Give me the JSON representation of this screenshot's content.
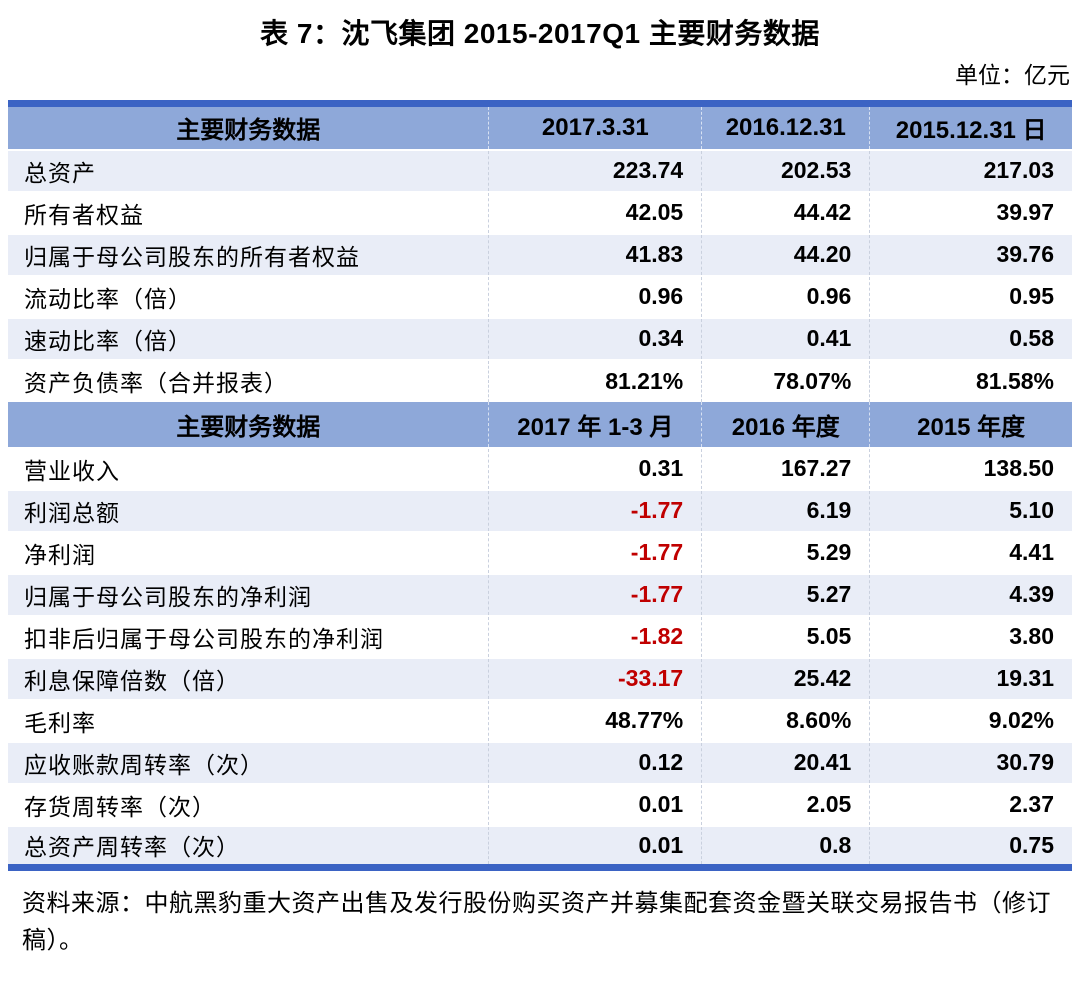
{
  "title": "表 7：沈飞集团 2015-2017Q1 主要财务数据",
  "unit_label": "单位：亿元",
  "colors": {
    "accent_bar": "#3b63c4",
    "header_background": "#8ea8d9",
    "shaded_row_background": "#e9edf7",
    "negative_value": "#c00000",
    "text": "#000000"
  },
  "table": {
    "sections": [
      {
        "header": {
          "label": "主要财务数据",
          "cols": [
            "2017.3.31",
            "2016.12.31",
            "2015.12.31 日"
          ]
        },
        "rows": [
          {
            "label": "总资产",
            "values": [
              "223.74",
              "202.53",
              "217.03"
            ]
          },
          {
            "label": "所有者权益",
            "values": [
              "42.05",
              "44.42",
              "39.97"
            ]
          },
          {
            "label": "归属于母公司股东的所有者权益",
            "values": [
              "41.83",
              "44.20",
              "39.76"
            ]
          },
          {
            "label": "流动比率（倍）",
            "values": [
              "0.96",
              "0.96",
              "0.95"
            ]
          },
          {
            "label": "速动比率（倍）",
            "values": [
              "0.34",
              "0.41",
              "0.58"
            ]
          },
          {
            "label": "资产负债率（合并报表）",
            "values": [
              "81.21%",
              "78.07%",
              "81.58%"
            ]
          }
        ]
      },
      {
        "header": {
          "label": "主要财务数据",
          "cols": [
            "2017 年 1-3 月",
            "2016 年度",
            "2015 年度"
          ]
        },
        "rows": [
          {
            "label": "营业收入",
            "values": [
              "0.31",
              "167.27",
              "138.50"
            ]
          },
          {
            "label": "利润总额",
            "values": [
              "-1.77",
              "6.19",
              "5.10"
            ]
          },
          {
            "label": "净利润",
            "values": [
              "-1.77",
              "5.29",
              "4.41"
            ]
          },
          {
            "label": "归属于母公司股东的净利润",
            "values": [
              "-1.77",
              "5.27",
              "4.39"
            ]
          },
          {
            "label": "扣非后归属于母公司股东的净利润",
            "values": [
              "-1.82",
              "5.05",
              "3.80"
            ]
          },
          {
            "label": "利息保障倍数（倍）",
            "values": [
              "-33.17",
              "25.42",
              "19.31"
            ]
          },
          {
            "label": "毛利率",
            "values": [
              "48.77%",
              "8.60%",
              "9.02%"
            ]
          },
          {
            "label": "应收账款周转率（次）",
            "values": [
              "0.12",
              "20.41",
              "30.79"
            ]
          },
          {
            "label": "存货周转率（次）",
            "values": [
              "0.01",
              "2.05",
              "2.37"
            ]
          },
          {
            "label": "总资产周转率（次）",
            "values": [
              "0.01",
              "0.8",
              "0.75"
            ]
          }
        ]
      }
    ]
  },
  "source_note": "资料来源：中航黑豹重大资产出售及发行股份购买资产并募集配套资金暨关联交易报告书（修订稿）。"
}
